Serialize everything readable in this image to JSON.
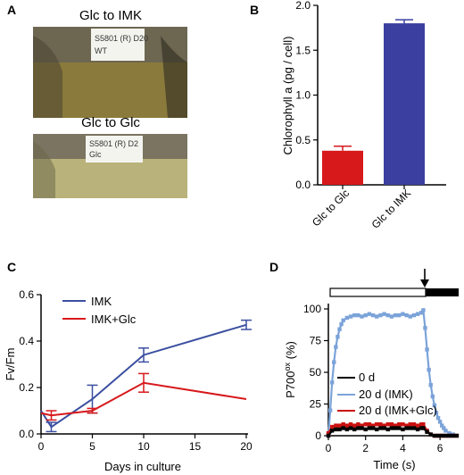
{
  "panels": {
    "a": {
      "letter": "A",
      "photos": [
        {
          "label": "Glc to IMK",
          "note_line1": "S5801 (R) D20",
          "note_line2": "WT",
          "broth_color": "#8a7a3c"
        },
        {
          "label": "Glc to Glc",
          "note_line1": "S5801 (R) D2",
          "note_line2": "Glc",
          "broth_color": "#b9b27a"
        }
      ]
    },
    "b": {
      "letter": "B"
    },
    "c": {
      "letter": "C"
    },
    "d": {
      "letter": "D"
    }
  },
  "chart_data": [
    {
      "id": "B",
      "type": "bar",
      "categories": [
        "Glc to Glc",
        "Glc to IMK"
      ],
      "values": [
        0.38,
        1.8
      ],
      "errors": [
        0.05,
        0.04
      ],
      "colors": [
        "#d7191c",
        "#3b3fa0"
      ],
      "ylabel": "Chlorophyll a (pg / cell)",
      "xlabel": "",
      "ylim": [
        0,
        2.0
      ],
      "yticks": [
        0.0,
        0.5,
        1.0,
        1.5,
        2.0
      ],
      "ytick_labels": [
        "0.0",
        "0.5",
        "1.0",
        "1.5",
        "2.0"
      ]
    },
    {
      "id": "C",
      "type": "line",
      "xlabel": "Days in culture",
      "ylabel": "Fv/Fm",
      "xlim": [
        0,
        20
      ],
      "ylim": [
        0,
        0.6
      ],
      "xticks": [
        0,
        5,
        10,
        15,
        20
      ],
      "yticks": [
        0.0,
        0.2,
        0.4,
        0.6
      ],
      "ytick_labels": [
        "0.0",
        "0.2",
        "0.4",
        "0.6"
      ],
      "legend": "top-left",
      "series": [
        {
          "name": "IMK",
          "color": "#3b4fa0",
          "x": [
            0,
            1,
            5,
            10,
            20
          ],
          "y": [
            0.1,
            0.03,
            0.15,
            0.34,
            0.47
          ],
          "err": [
            0.0,
            0.02,
            0.06,
            0.03,
            0.02
          ]
        },
        {
          "name": "IMK+Glc",
          "color": "#d7191c",
          "x": [
            0,
            1,
            5,
            10,
            20
          ],
          "y": [
            0.09,
            0.08,
            0.1,
            0.22,
            0.15
          ],
          "err": [
            0.0,
            0.02,
            0.01,
            0.04,
            0.0
          ]
        }
      ]
    },
    {
      "id": "D",
      "type": "scatter",
      "xlabel": "Time (s)",
      "ylabel_main": "P700",
      "ylabel_sup": "ox",
      "ylabel_tail": " (%)",
      "xlim": [
        0,
        7
      ],
      "ylim": [
        0,
        100
      ],
      "xticks": [
        0,
        2,
        4,
        6
      ],
      "yticks": [
        0,
        25,
        50,
        75,
        100
      ],
      "light_off_time": 5.1,
      "legend": "bottom-left",
      "series": [
        {
          "name": "0 d",
          "color": "#000000",
          "x": [
            0.0,
            0.2,
            0.4,
            0.6,
            0.8,
            1.0,
            1.2,
            1.4,
            1.6,
            1.8,
            2.0,
            2.2,
            2.4,
            2.6,
            2.8,
            3.0,
            3.2,
            3.4,
            3.6,
            3.8,
            4.0,
            4.2,
            4.4,
            4.6,
            4.8,
            5.0,
            5.1,
            5.3,
            5.5,
            5.7,
            5.9,
            6.1,
            6.3,
            6.5,
            6.7,
            6.9
          ],
          "y": [
            0,
            4,
            5,
            5,
            6,
            5,
            6,
            5,
            6,
            6,
            5,
            6,
            6,
            5,
            6,
            6,
            5,
            6,
            6,
            6,
            5,
            6,
            6,
            6,
            5,
            6,
            6,
            3,
            1,
            0,
            0,
            0,
            0,
            0,
            0,
            0
          ]
        },
        {
          "name": "20 d (IMK)",
          "color": "#7ba3d9",
          "x": [
            0.0,
            0.1,
            0.2,
            0.3,
            0.4,
            0.5,
            0.6,
            0.7,
            0.8,
            1.0,
            1.2,
            1.4,
            1.6,
            1.8,
            2.0,
            2.2,
            2.4,
            2.6,
            2.8,
            3.0,
            3.2,
            3.4,
            3.6,
            3.8,
            4.0,
            4.2,
            4.4,
            4.6,
            4.8,
            5.0,
            5.1,
            5.2,
            5.3,
            5.4,
            5.5,
            5.6,
            5.7,
            5.8,
            5.9,
            6.0,
            6.1,
            6.2,
            6.3,
            6.5,
            6.7
          ],
          "y": [
            0,
            20,
            42,
            58,
            70,
            78,
            84,
            88,
            91,
            93,
            94,
            95,
            95,
            94,
            95,
            96,
            95,
            94,
            95,
            96,
            95,
            94,
            95,
            95,
            96,
            95,
            94,
            95,
            96,
            97,
            99,
            85,
            68,
            52,
            40,
            31,
            24,
            18,
            14,
            11,
            8,
            6,
            4,
            2,
            1
          ]
        },
        {
          "name": "20 d (IMK+Glc)",
          "color": "#cc1111",
          "x": [
            0.0,
            0.2,
            0.4,
            0.6,
            0.8,
            1.0,
            1.2,
            1.4,
            1.6,
            1.8,
            2.0,
            2.2,
            2.4,
            2.6,
            2.8,
            3.0,
            3.2,
            3.4,
            3.6,
            3.8,
            4.0,
            4.2,
            4.4,
            4.6,
            4.8,
            5.0,
            5.1,
            5.3,
            5.5,
            5.7,
            5.9,
            6.1,
            6.3,
            6.5,
            6.7,
            6.9
          ],
          "y": [
            2,
            7,
            8,
            8,
            9,
            8,
            9,
            8,
            9,
            8,
            9,
            9,
            8,
            9,
            9,
            8,
            9,
            9,
            8,
            9,
            9,
            8,
            9,
            9,
            8,
            9,
            9,
            4,
            1,
            0,
            0,
            0,
            0,
            0,
            0,
            0
          ]
        }
      ]
    }
  ]
}
